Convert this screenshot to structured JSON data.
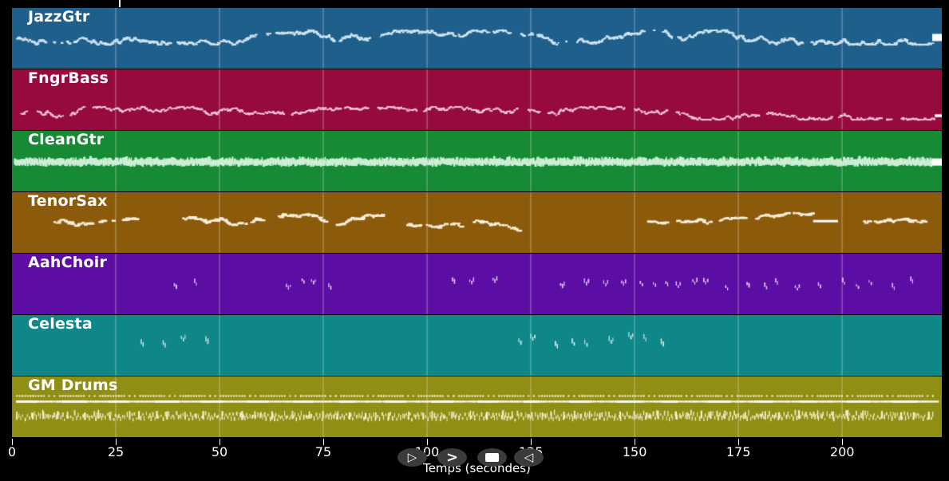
{
  "app": {
    "background": "#000000",
    "grid_color": "rgba(255,255,255,0.42)"
  },
  "axis": {
    "label": "Temps (secondes)",
    "min": 0,
    "max": 224,
    "ticks": [
      0,
      25,
      50,
      75,
      100,
      125,
      150,
      175,
      200
    ]
  },
  "transport": {
    "buttons": [
      {
        "name": "play",
        "glyph": "▷"
      },
      {
        "name": "forward",
        "glyph": ">"
      },
      {
        "name": "stop",
        "glyph": ""
      },
      {
        "name": "rewind",
        "glyph": "◁"
      }
    ]
  },
  "playhead": {
    "time": 26
  },
  "tracks": [
    {
      "name": "JazzGtr",
      "color": "#1F5F8B",
      "note_color": "#CFE4F2",
      "seed": 11,
      "segments": [
        {
          "t": [
            1,
            221.5
          ],
          "style": "dash",
          "rate": 4.6,
          "w": [
            2,
            4.5
          ],
          "h": [
            1.5,
            2.5
          ],
          "yc": 37,
          "spread": 9,
          "walk": true,
          "gap_p": 0.025
        }
      ],
      "sustains": [
        {
          "t": [
            221.7,
            224
          ],
          "h": 9,
          "yc": 37
        }
      ]
    },
    {
      "name": "FngrBass",
      "color": "#970A3E",
      "note_color": "#F5CCDC",
      "seed": 22,
      "segments": [
        {
          "t": [
            2,
            222
          ],
          "style": "dash",
          "rate": 3.1,
          "w": [
            2,
            4
          ],
          "h": [
            1.5,
            2.5
          ],
          "yc": 55,
          "spread": 8,
          "walk": true,
          "gap_p": 0.02
        }
      ],
      "sustains": [
        {
          "t": [
            222.3,
            224
          ],
          "h": 3.5,
          "yc": 58
        }
      ]
    },
    {
      "name": "CleanGtr",
      "color": "#178A35",
      "note_color": "#CDEED6",
      "seed": 33,
      "segments": [
        {
          "t": [
            0.5,
            221.5
          ],
          "style": "vtick",
          "rate": 7.5,
          "w": [
            1,
            2
          ],
          "h": [
            4,
            8
          ],
          "yc": 42,
          "spread": 2,
          "jitter": true
        },
        {
          "t": [
            0.5,
            221.5
          ],
          "style": "vtick",
          "rate": 1.6,
          "w": [
            2,
            3.5
          ],
          "h": [
            6,
            10
          ],
          "yc": 43,
          "spread": 2,
          "jitter": true
        }
      ],
      "sustains": [
        {
          "t": [
            221.6,
            224
          ],
          "h": 9,
          "yc": 39
        }
      ]
    },
    {
      "name": "TenorSax",
      "color": "#8C5A0B",
      "note_color": "#F8EEDC",
      "seed": 44,
      "segments": [
        {
          "t": [
            10,
            22
          ],
          "style": "dash",
          "rate": 2.3,
          "w": [
            3,
            7
          ],
          "h": [
            2,
            3
          ],
          "yc": 37,
          "spread": 11,
          "walk": true,
          "gap_p": 0.05
        },
        {
          "t": [
            24,
            31
          ],
          "style": "dash",
          "rate": 2.3,
          "w": [
            3,
            7
          ],
          "h": [
            2,
            3
          ],
          "yc": 37,
          "spread": 11,
          "walk": true,
          "gap_p": 0.05
        },
        {
          "t": [
            41,
            60
          ],
          "style": "dash",
          "rate": 2.3,
          "w": [
            3,
            7
          ],
          "h": [
            2,
            3
          ],
          "yc": 37,
          "spread": 11,
          "walk": true,
          "gap_p": 0.05
        },
        {
          "t": [
            64,
            76
          ],
          "style": "dash",
          "rate": 2.3,
          "w": [
            3,
            7
          ],
          "h": [
            2,
            3
          ],
          "yc": 37,
          "spread": 11,
          "walk": true,
          "gap_p": 0.05
        },
        {
          "t": [
            78,
            90
          ],
          "style": "dash",
          "rate": 2.3,
          "w": [
            3,
            7
          ],
          "h": [
            2,
            3
          ],
          "yc": 37,
          "spread": 11,
          "walk": true,
          "gap_p": 0.05
        },
        {
          "t": [
            95,
            108
          ],
          "style": "dash",
          "rate": 2.0,
          "w": [
            3,
            7
          ],
          "h": [
            2,
            3
          ],
          "yc": 37,
          "spread": 11,
          "walk": true,
          "gap_p": 0.08
        },
        {
          "t": [
            111,
            122
          ],
          "style": "dash",
          "rate": 1.8,
          "w": [
            3,
            7
          ],
          "h": [
            2,
            3
          ],
          "yc": 37,
          "spread": 11,
          "walk": true,
          "gap_p": 0.08
        },
        {
          "t": [
            153,
            178
          ],
          "style": "dash",
          "rate": 2.3,
          "w": [
            3,
            7
          ],
          "h": [
            2,
            3
          ],
          "yc": 37,
          "spread": 11,
          "walk": true,
          "gap_p": 0.05
        },
        {
          "t": [
            179,
            192.5
          ],
          "style": "dash",
          "rate": 2.3,
          "w": [
            3,
            7
          ],
          "h": [
            2,
            3
          ],
          "yc": 37,
          "spread": 11,
          "walk": true,
          "gap_p": 0.05
        },
        {
          "t": [
            205,
            220
          ],
          "style": "dash",
          "rate": 2.0,
          "w": [
            3,
            7
          ],
          "h": [
            2,
            3
          ],
          "yc": 37,
          "spread": 9,
          "walk": true,
          "gap_p": 0.06
        }
      ],
      "sustains": [
        {
          "t": [
            193,
            199
          ],
          "h": 3,
          "yc": 36
        }
      ]
    },
    {
      "name": "AahChoir",
      "color": "#5C0DA3",
      "note_color": "#E2D4F4",
      "seed": 55,
      "segments": [
        {
          "t": [
            39,
            46
          ],
          "style": "cluster",
          "rate": 0.28,
          "w": [
            1,
            1.8
          ],
          "h": [
            3,
            6
          ],
          "yc": 36,
          "spread": 5
        },
        {
          "t": [
            66,
            78
          ],
          "style": "cluster",
          "rate": 0.3,
          "w": [
            1,
            1.8
          ],
          "h": [
            3,
            6
          ],
          "yc": 36,
          "spread": 5
        },
        {
          "t": [
            106,
            119
          ],
          "style": "cluster",
          "rate": 0.22,
          "w": [
            1,
            1.8
          ],
          "h": [
            3,
            6
          ],
          "yc": 36,
          "spread": 5
        },
        {
          "t": [
            132,
            221
          ],
          "style": "cluster",
          "rate": 0.24,
          "w": [
            1,
            1.8
          ],
          "h": [
            3,
            6
          ],
          "yc": 36,
          "spread": 5
        }
      ],
      "sustains": []
    },
    {
      "name": "Celesta",
      "color": "#0F8788",
      "note_color": "#D4F0F0",
      "seed": 66,
      "segments": [
        {
          "t": [
            31,
            47.5
          ],
          "style": "cluster",
          "rate": 0.23,
          "w": [
            1,
            1.8
          ],
          "h": [
            4,
            7
          ],
          "yc": 31,
          "spread": 6
        },
        {
          "t": [
            122,
            158
          ],
          "style": "cluster",
          "rate": 0.23,
          "w": [
            1,
            1.8
          ],
          "h": [
            4,
            7
          ],
          "yc": 31,
          "spread": 6
        }
      ],
      "sustains": []
    },
    {
      "name": "GM Drums",
      "color": "#8F8F15",
      "note_color": "#EDEDBE",
      "seed": 77,
      "segments": [
        {
          "t": [
            1,
            222.5
          ],
          "style": "dot",
          "rate": 1.55,
          "w": [
            2,
            2.5
          ],
          "h": [
            2,
            2.5
          ],
          "yc": 24,
          "spread": 0.5,
          "regular": true,
          "burst": {
            "on": 6.4,
            "off": 3.2,
            "factor": 0.5
          },
          "color": "#EDEDBE"
        },
        {
          "t": [
            1,
            222.8
          ],
          "style": "dash",
          "rate": 1.9,
          "w": [
            3,
            5.5
          ],
          "h": [
            2,
            2.5
          ],
          "yc": 31,
          "spread": 0.5,
          "regular": true,
          "color": "#F6F6E6"
        },
        {
          "t": [
            1,
            222.8
          ],
          "style": "dash",
          "rate": 0.09,
          "w": [
            20,
            32
          ],
          "h": [
            2.5,
            3
          ],
          "yc": 31,
          "spread": 0,
          "regular": true,
          "color": "#FDFDF5"
        },
        {
          "t": [
            1,
            222
          ],
          "style": "vtick",
          "rate": 2.3,
          "w": [
            1,
            2
          ],
          "h": [
            3,
            7
          ],
          "yc": 53,
          "spread": 2,
          "jitter": true,
          "alt": true,
          "color": "#E9E9BC"
        },
        {
          "t": [
            1,
            222
          ],
          "style": "vtick",
          "rate": 0.28,
          "w": [
            1.5,
            2.5
          ],
          "h": [
            8,
            11
          ],
          "yc": 53,
          "spread": 1,
          "jitter": true,
          "color": "#F2F2CC"
        }
      ],
      "sustains": []
    }
  ]
}
